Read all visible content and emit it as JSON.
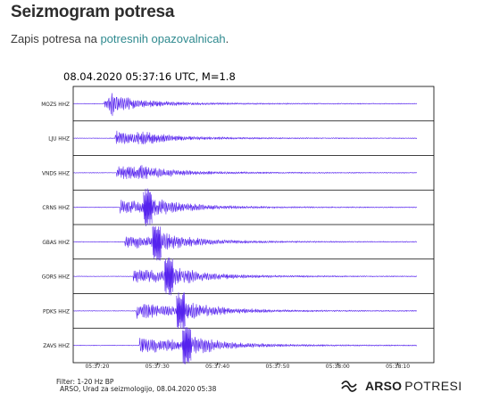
{
  "page": {
    "title": "Seizmogram potresa",
    "intro_prefix": "Zapis potresa na ",
    "intro_link": "potresnih opazovalnicah",
    "intro_suffix": "."
  },
  "chart_data": {
    "type": "line",
    "title": "08.04.2020  05:37:16 UTC, M=1.8",
    "x_tick_labels": [
      "05:37:20",
      "05:37:30",
      "05:37:40",
      "05:37:50",
      "05:38:00",
      "05:38:10"
    ],
    "x_range_seconds": [
      0,
      60
    ],
    "trace_color": "#5522ee",
    "series": [
      {
        "name": "MOZS HHZ",
        "onset_s": 5.2,
        "peak_s": 6.5,
        "s_arrival_s": 7.2,
        "noise": 0.18
      },
      {
        "name": "LJU HHZ",
        "onset_s": 7.0,
        "peak_s": 7.8,
        "s_arrival_s": 10.5,
        "noise": 0.05
      },
      {
        "name": "VNDS HHZ",
        "onset_s": 7.2,
        "peak_s": 8.0,
        "s_arrival_s": 10.8,
        "noise": 0.05
      },
      {
        "name": "CRNS HHZ",
        "onset_s": 7.8,
        "peak_s": 12.0,
        "s_arrival_s": 12.0,
        "noise": 0.05
      },
      {
        "name": "GBAS HHZ",
        "onset_s": 8.6,
        "peak_s": 13.5,
        "s_arrival_s": 13.5,
        "noise": 0.05
      },
      {
        "name": "GORS HHZ",
        "onset_s": 10.0,
        "peak_s": 15.5,
        "s_arrival_s": 15.5,
        "noise": 0.05
      },
      {
        "name": "PDKS HHZ",
        "onset_s": 10.5,
        "peak_s": 17.5,
        "s_arrival_s": 17.5,
        "noise": 0.05
      },
      {
        "name": "ZAVS HHZ",
        "onset_s": 11.0,
        "peak_s": 18.5,
        "s_arrival_s": 18.5,
        "noise": 0.05
      }
    ]
  },
  "footer": {
    "filter": "Filter: 1-20 Hz BP",
    "credit": "ARSO, Urad za seizmologijo, 08.04.2020  05:38"
  },
  "brand": {
    "name": "ARSO",
    "sub": "POTRESI",
    "icon": "arso-waves-logo-icon"
  }
}
